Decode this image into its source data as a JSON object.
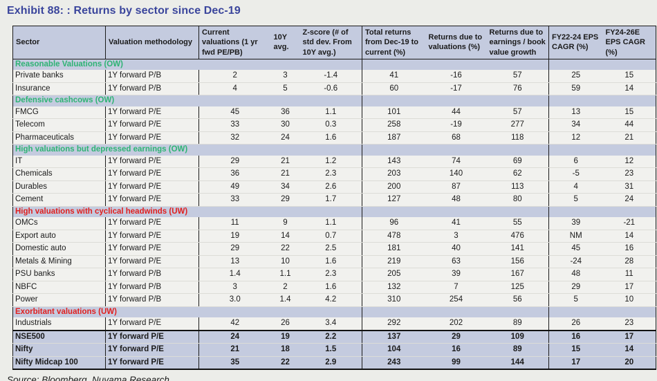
{
  "title": "Exhibit 88: : Returns by sector since Dec-19",
  "source": "Source: Bloomberg, Nuvama Research",
  "colors": {
    "page_bg": "#ecede9",
    "title_text": "#3a459c",
    "header_band_bg": "#c4cbdf",
    "data_row_bg": "#f1f1ee",
    "section_overweight_green": "#2eb374",
    "section_underweight_red": "#e0201f",
    "grid_line": "#1a1a1a"
  },
  "table": {
    "columns": [
      "Sector",
      "Valuation methodology",
      "Current valuations (1 yr fwd PE/PB)",
      "10Y avg.",
      "Z-score (# of std dev. From 10Y avg.)",
      "Total returns from Dec-19 to current (%)",
      "Returns due to valuations (%)",
      "Returns due to earnings / book value growth",
      "FY22-24 EPS CAGR (%)",
      "FY24-26E EPS CAGR (%)"
    ],
    "sections": [
      {
        "label": "Reasonable Valuations (OW)",
        "style": "green",
        "rows": [
          [
            "Private banks",
            "1Y forward P/B",
            "2",
            "3",
            "-1.4",
            "41",
            "-16",
            "57",
            "25",
            "15"
          ],
          [
            "Insurance",
            "1Y forward P/B",
            "4",
            "5",
            "-0.6",
            "60",
            "-17",
            "76",
            "59",
            "14"
          ]
        ]
      },
      {
        "label": "Defensive cashcows (OW)",
        "style": "green",
        "rows": [
          [
            "FMCG",
            "1Y forward P/E",
            "45",
            "36",
            "1.1",
            "101",
            "44",
            "57",
            "13",
            "15"
          ],
          [
            "Telecom",
            "1Y forward P/E",
            "33",
            "30",
            "0.3",
            "258",
            "-19",
            "277",
            "34",
            "44"
          ],
          [
            "Pharmaceuticals",
            "1Y forward P/E",
            "32",
            "24",
            "1.6",
            "187",
            "68",
            "118",
            "12",
            "21"
          ]
        ]
      },
      {
        "label": "High valuations but depressed earnings (OW)",
        "style": "green",
        "rows": [
          [
            "IT",
            "1Y forward P/E",
            "29",
            "21",
            "1.2",
            "143",
            "74",
            "69",
            "6",
            "12"
          ],
          [
            "Chemicals",
            "1Y forward P/E",
            "36",
            "21",
            "2.3",
            "203",
            "140",
            "62",
            "-5",
            "23"
          ],
          [
            "Durables",
            "1Y forward P/E",
            "49",
            "34",
            "2.6",
            "200",
            "87",
            "113",
            "4",
            "31"
          ],
          [
            "Cement",
            "1Y forward P/E",
            "33",
            "29",
            "1.7",
            "127",
            "48",
            "80",
            "5",
            "24"
          ]
        ]
      },
      {
        "label": "High valuations with cyclical headwinds (UW)",
        "style": "red",
        "rows": [
          [
            "OMCs",
            "1Y forward P/E",
            "11",
            "9",
            "1.1",
            "96",
            "41",
            "55",
            "39",
            "-21"
          ],
          [
            "Export auto",
            "1Y forward P/E",
            "19",
            "14",
            "0.7",
            "478",
            "3",
            "476",
            "NM",
            "14"
          ],
          [
            "Domestic auto",
            "1Y forward P/E",
            "29",
            "22",
            "2.5",
            "181",
            "40",
            "141",
            "45",
            "16"
          ],
          [
            "Metals & Mining",
            "1Y forward P/E",
            "13",
            "10",
            "1.6",
            "219",
            "63",
            "156",
            "-24",
            "28"
          ],
          [
            "PSU banks",
            "1Y forward P/B",
            "1.4",
            "1.1",
            "2.3",
            "205",
            "39",
            "167",
            "48",
            "11"
          ],
          [
            "NBFC",
            "1Y forward P/B",
            "3",
            "2",
            "1.6",
            "132",
            "7",
            "125",
            "29",
            "17"
          ],
          [
            "Power",
            "1Y forward P/B",
            "3.0",
            "1.4",
            "4.2",
            "310",
            "254",
            "56",
            "5",
            "10"
          ]
        ]
      },
      {
        "label": "Exorbitant valuations (UW)",
        "style": "red",
        "rows": [
          [
            "Industrials",
            "1Y forward P/E",
            "42",
            "26",
            "3.4",
            "292",
            "202",
            "89",
            "26",
            "23"
          ]
        ]
      }
    ],
    "index_rows": [
      [
        "NSE500",
        "1Y forward P/E",
        "24",
        "19",
        "2.2",
        "137",
        "29",
        "109",
        "16",
        "17"
      ],
      [
        "Nifty",
        "1Y forward P/E",
        "21",
        "18",
        "1.5",
        "104",
        "16",
        "89",
        "15",
        "14"
      ],
      [
        "Nifty Midcap 100",
        "1Y forward P/E",
        "35",
        "22",
        "2.9",
        "243",
        "99",
        "144",
        "17",
        "20"
      ]
    ]
  }
}
